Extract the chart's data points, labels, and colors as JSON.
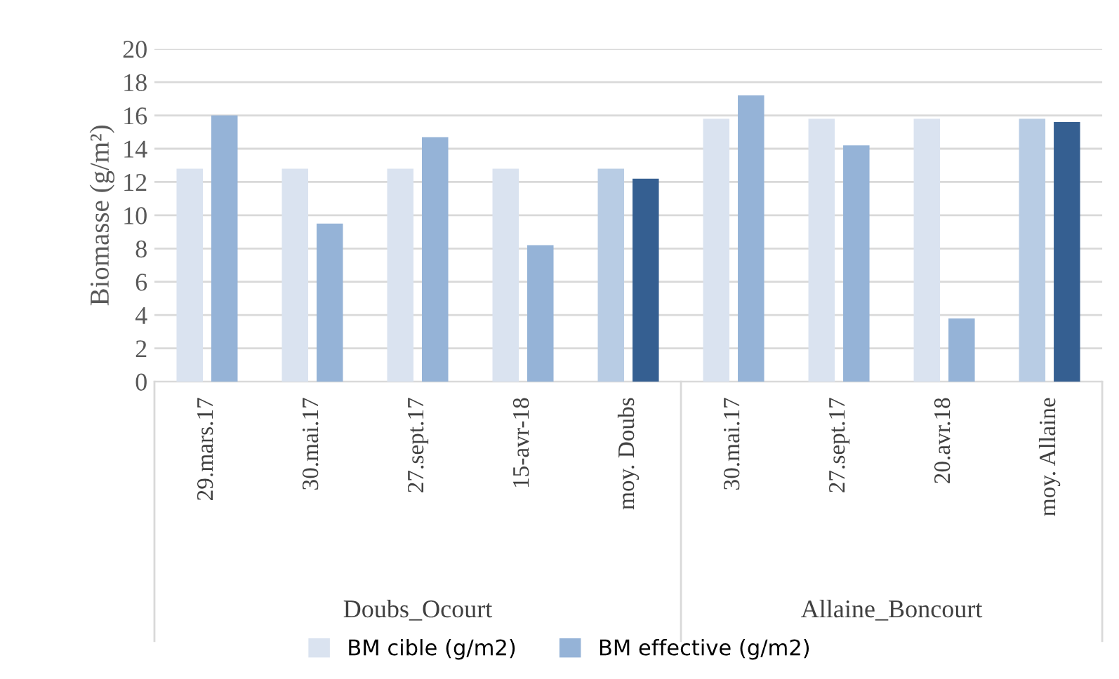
{
  "chart_data": {
    "type": "bar",
    "ylabel": "Biomasse (g/m²)",
    "categories": [
      "29.mars.17",
      "30.mai.17",
      "27.sept.17",
      "15-avr-18",
      "moy. Doubs",
      "30.mai.17",
      "27.sept.17",
      "20.avr.18",
      "moy. Allaine"
    ],
    "series": [
      {
        "name": "BM cible (g/m2)",
        "color": "#dae3f0",
        "colors": [
          "#dae3f0",
          "#dae3f0",
          "#dae3f0",
          "#dae3f0",
          "#b8cce4",
          "#dae3f0",
          "#dae3f0",
          "#dae3f0",
          "#b8cce4"
        ],
        "values": [
          12.8,
          12.8,
          12.8,
          12.8,
          12.8,
          15.8,
          15.8,
          15.8,
          15.8
        ]
      },
      {
        "name": "BM effective (g/m2)",
        "color": "#95b3d7",
        "colors": [
          "#95b3d7",
          "#95b3d7",
          "#95b3d7",
          "#95b3d7",
          "#355f91",
          "#95b3d7",
          "#95b3d7",
          "#95b3d7",
          "#355f91"
        ],
        "values": [
          16.0,
          9.5,
          14.7,
          8.2,
          12.2,
          17.2,
          14.2,
          3.8,
          15.6
        ]
      }
    ],
    "annotations": [
      "Doubs_Ocourt",
      "Allaine_Boncourt"
    ],
    "ylim": [
      0,
      20
    ],
    "yticks": [
      0,
      2,
      4,
      6,
      8,
      10,
      12,
      14,
      16,
      18,
      20
    ],
    "grid": "y",
    "legend": "bottom"
  }
}
